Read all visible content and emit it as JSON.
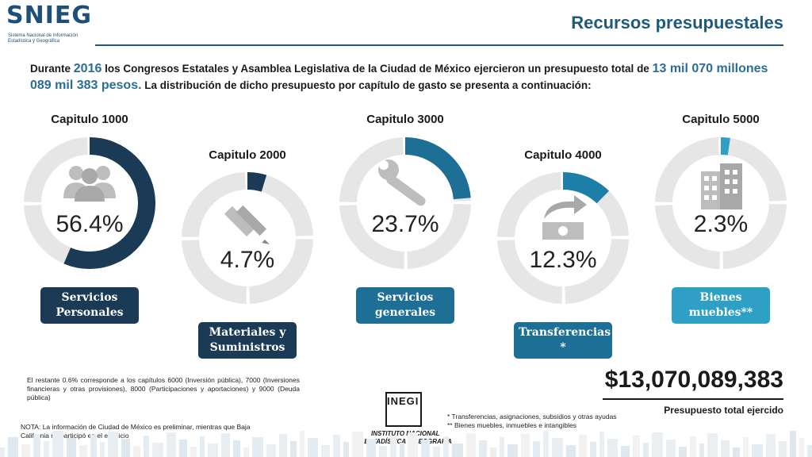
{
  "header": {
    "logo_text": "SNIEG",
    "logo_subtitle": "Sistema Nacional de Información Estadística y Geográfica",
    "title": "Recursos presupuestales"
  },
  "intro": {
    "part1": "Durante ",
    "year": "2016",
    "part2": " los Congresos Estatales y Asamblea Legislativa de la Ciudad de México ejercieron un presupuesto total de ",
    "amount": "13 mil 070 millones 089 mil 383 pesos.",
    "part3": " La distribución de dicho presupuesto por capítulo de gasto se presenta a continuación:"
  },
  "chart_data": {
    "type": "pie",
    "style": "donut",
    "series": [
      {
        "chapter": "Capitulo 1000",
        "category": "Servicios Personales",
        "value": 56.4,
        "label": "56.4%",
        "color": "#1b3a56",
        "icon": "people-icon"
      },
      {
        "chapter": "Capitulo 2000",
        "category": "Materiales y Suministros",
        "value": 4.7,
        "label": "4.7%",
        "color": "#1b3a56",
        "icon": "pencil-ruler-icon"
      },
      {
        "chapter": "Capitulo 3000",
        "category": "Servicios generales",
        "value": 23.7,
        "label": "23.7%",
        "color": "#1d6f96",
        "icon": "wrench-icon"
      },
      {
        "chapter": "Capitulo 4000",
        "category": "Transferencias *",
        "value": 12.3,
        "label": "12.3%",
        "color": "#1d7fa8",
        "icon": "money-transfer-icon"
      },
      {
        "chapter": "Capitulo 5000",
        "category": "Bienes muebles**",
        "value": 2.3,
        "label": "2.3%",
        "color": "#2ea0c6",
        "icon": "building-icon"
      }
    ],
    "track_color": "#e6e6e6"
  },
  "remaining_note": "El restante 0.6% corresponde a los capítulos 6000 (Inversión pública), 7000 (Inversiones financieras y otras provisiones), 8000 (Participaciones y aportaciones) y 9000 (Deuda pública)",
  "nota": "NOTA: La información de Ciudad de México es preliminar, mientras que Baja California no participó en el ejercicio",
  "inegi": {
    "name": "INEGI",
    "line1": "INSTITUTO NACIONAL",
    "line2": "DE ESTADÍSTICA Y GEOGRAFÍA"
  },
  "footnotes": [
    "* Transferencias, asignaciones, subsidios y otras ayudas",
    "** Bienes muebles, inmuebles e intangibles"
  ],
  "total": {
    "value": "$13,070,089,383",
    "label": "Presupuesto total ejercido"
  }
}
